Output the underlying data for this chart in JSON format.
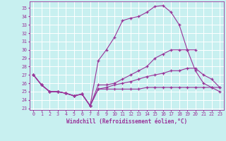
{
  "xlabel": "Windchill (Refroidissement éolien,°C)",
  "bg_color": "#c8f0f0",
  "grid_color": "#aadddd",
  "line_color": "#993399",
  "xlim": [
    -0.5,
    23.5
  ],
  "ylim": [
    22.8,
    35.8
  ],
  "yticks": [
    23,
    24,
    25,
    26,
    27,
    28,
    29,
    30,
    31,
    32,
    33,
    34,
    35
  ],
  "xticks": [
    0,
    1,
    2,
    3,
    4,
    5,
    6,
    7,
    8,
    9,
    10,
    11,
    12,
    13,
    14,
    15,
    16,
    17,
    18,
    19,
    20,
    21,
    22,
    23
  ],
  "series": [
    [
      27.0,
      25.8,
      25.0,
      25.0,
      24.8,
      24.5,
      24.7,
      23.3,
      28.7,
      30.0,
      31.5,
      33.5,
      33.8,
      34.0,
      34.5,
      35.2,
      35.3,
      34.5,
      33.0,
      30.0,
      30.0,
      null,
      null,
      null
    ],
    [
      27.0,
      25.8,
      25.0,
      25.0,
      24.8,
      24.5,
      24.7,
      23.3,
      25.8,
      25.8,
      26.0,
      26.5,
      27.0,
      27.5,
      28.0,
      29.0,
      29.5,
      30.0,
      30.0,
      30.0,
      27.5,
      26.0,
      25.5,
      25.0
    ],
    [
      27.0,
      25.8,
      25.0,
      25.0,
      24.8,
      24.5,
      24.7,
      23.3,
      25.3,
      25.5,
      25.8,
      26.0,
      26.2,
      26.5,
      26.8,
      27.0,
      27.2,
      27.5,
      27.5,
      27.8,
      27.8,
      27.0,
      26.5,
      25.5
    ],
    [
      27.0,
      25.8,
      25.0,
      25.0,
      24.8,
      24.5,
      24.7,
      23.3,
      25.3,
      25.3,
      25.3,
      25.3,
      25.3,
      25.3,
      25.5,
      25.5,
      25.5,
      25.5,
      25.5,
      25.5,
      25.5,
      25.5,
      25.5,
      25.5
    ]
  ]
}
